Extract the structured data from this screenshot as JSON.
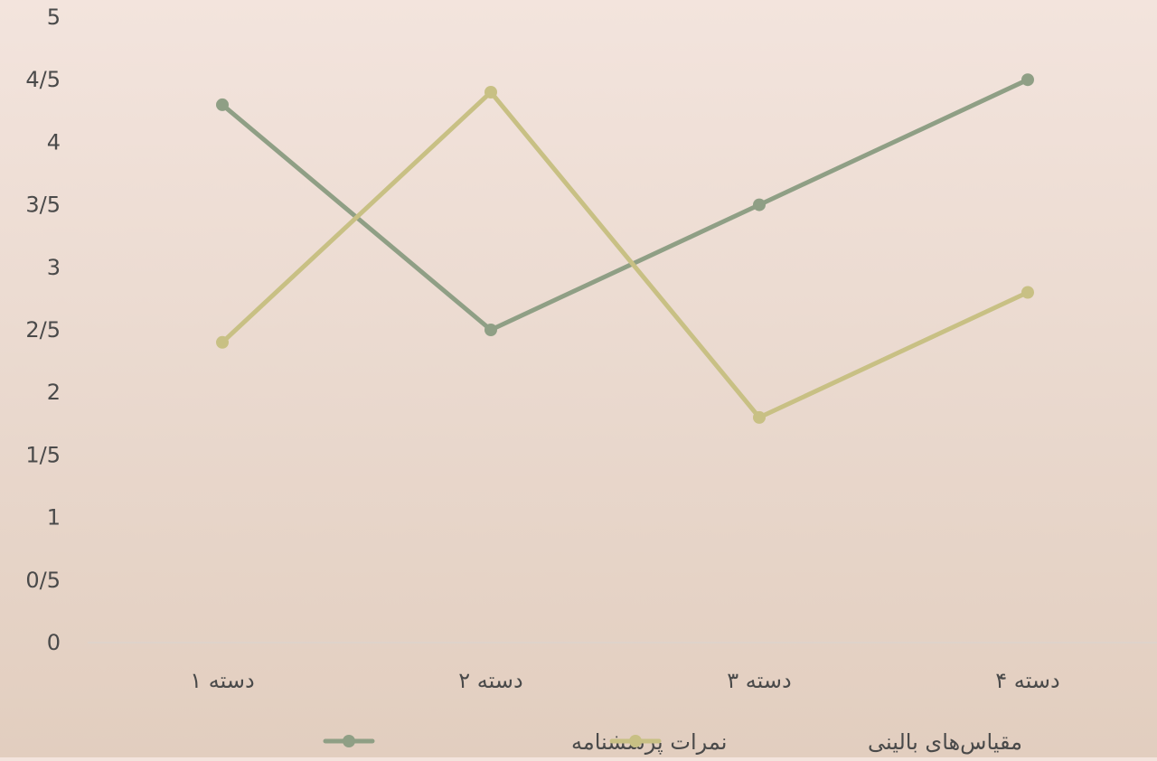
{
  "chart_data": {
    "type": "line",
    "categories": [
      "دسته ۱",
      "دسته ۲",
      "دسته ۳",
      "دسته ۴"
    ],
    "series": [
      {
        "name": "نمرات پرسشنامه",
        "values": [
          4.3,
          2.5,
          3.5,
          4.5
        ],
        "color": "#8f9f85"
      },
      {
        "name": "مقیاس‌های بالینی",
        "values": [
          2.4,
          4.4,
          1.8,
          2.8
        ],
        "color": "#c8c084"
      }
    ],
    "y_ticks": [
      "0",
      "0/5",
      "1",
      "1/5",
      "2",
      "2/5",
      "3",
      "3/5",
      "4",
      "4/5",
      "5"
    ],
    "ylim": [
      0,
      5
    ],
    "grid": false,
    "legend_position": "bottom"
  }
}
